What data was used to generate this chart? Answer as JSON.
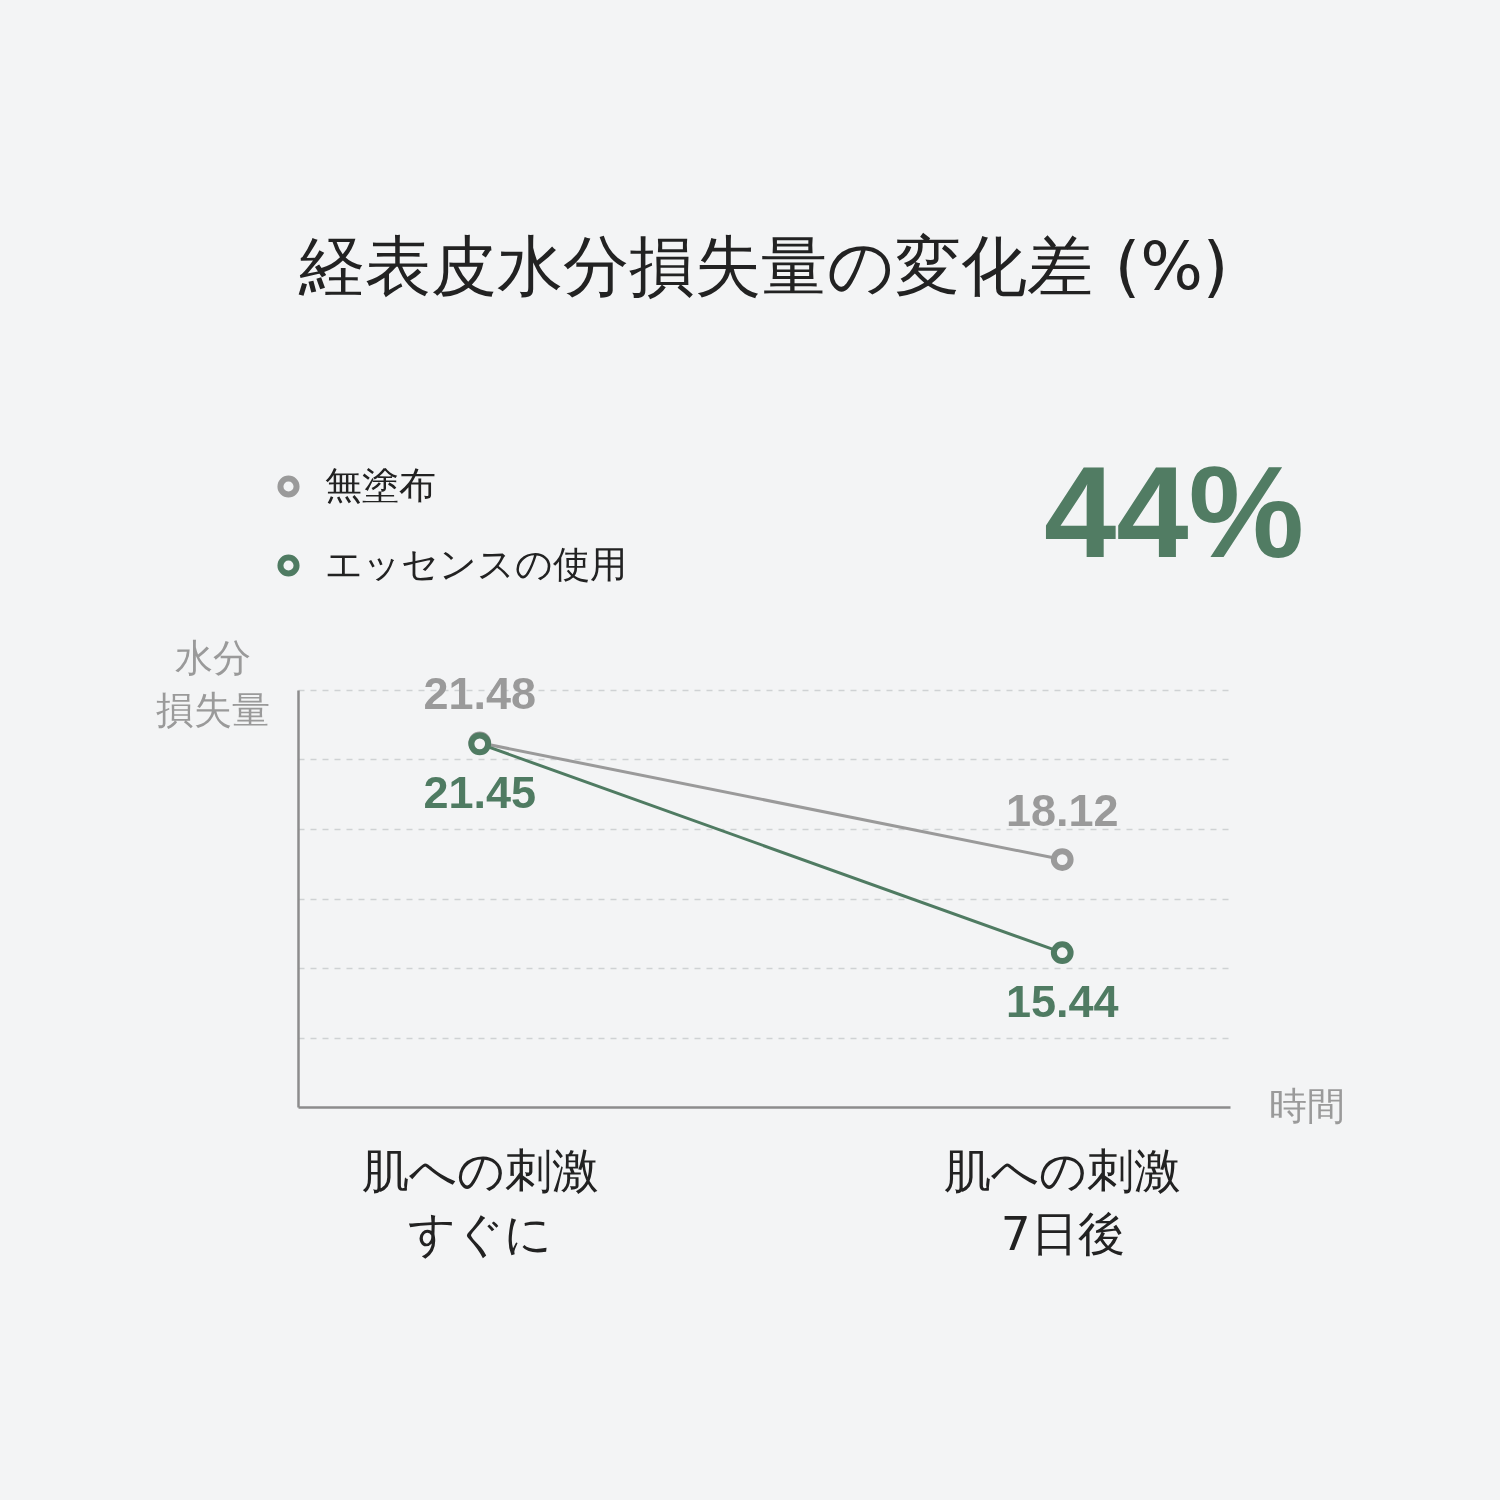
{
  "chart_data": {
    "type": "line",
    "title": "経表皮水分損失量の変化差 (%)",
    "xlabel": "時間",
    "ylabel": "水分損失量",
    "categories": [
      "肌への刺激すぐに",
      "肌への刺激7日後"
    ],
    "series": [
      {
        "name": "無塗布",
        "color": "#9a9a9a",
        "values": [
          21.48,
          18.12
        ]
      },
      {
        "name": "エッセンスの使用",
        "color": "#4f7b62",
        "values": [
          21.45,
          15.44
        ]
      }
    ],
    "ylim": [
      11,
      23
    ],
    "yticks": [
      {
        "value": 13,
        "label": null
      },
      {
        "value": 15,
        "label": null
      },
      {
        "value": 17,
        "label": null
      },
      {
        "value": 19,
        "label": null
      },
      {
        "value": 21,
        "label": null
      },
      {
        "value": 23,
        "label": null
      }
    ],
    "tick_labels": "x",
    "grid": "y",
    "data_labels": true,
    "legend": "top left",
    "marker": "circle",
    "line_style": "solid",
    "annotations": [
      "44%"
    ]
  }
}
